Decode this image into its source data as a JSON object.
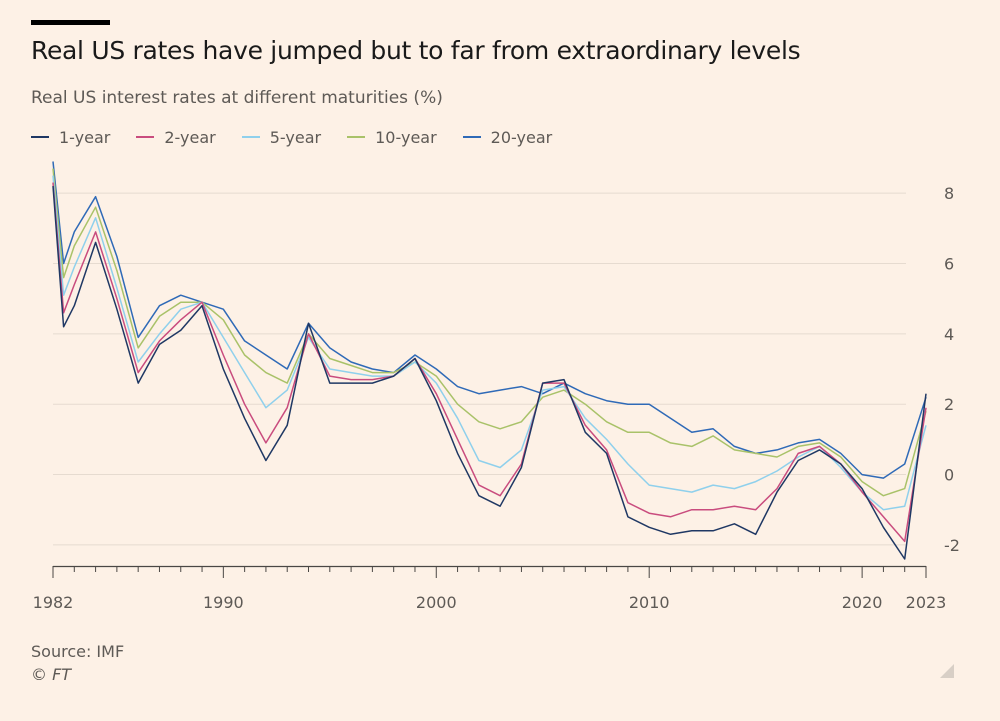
{
  "header": {
    "title": "Real US rates have jumped but to far from extraordinary levels",
    "subtitle": "Real US interest rates at different maturities (%)"
  },
  "footer": {
    "source": "Source: IMF",
    "credit": "© FT"
  },
  "chart_data": {
    "type": "line",
    "title": "Real US rates have jumped but to far from extraordinary levels",
    "ylabel": "Real US interest rates at different maturities (%)",
    "xlim": [
      1982,
      2023
    ],
    "ylim": [
      -2.6,
      9.0
    ],
    "xticks": [
      1982,
      1983,
      1984,
      1985,
      1986,
      1987,
      1988,
      1989,
      1990,
      1991,
      1992,
      1993,
      1994,
      1995,
      1996,
      1997,
      1998,
      1999,
      2000,
      2001,
      2002,
      2003,
      2004,
      2005,
      2006,
      2007,
      2008,
      2009,
      2010,
      2011,
      2012,
      2013,
      2014,
      2015,
      2016,
      2017,
      2018,
      2019,
      2020,
      2021,
      2022,
      2023
    ],
    "xtick_labels": [
      {
        "x": 1982,
        "label": "1982"
      },
      {
        "x": 1990,
        "label": "1990"
      },
      {
        "x": 2000,
        "label": "2000"
      },
      {
        "x": 2010,
        "label": "2010"
      },
      {
        "x": 2020,
        "label": "2020"
      },
      {
        "x": 2023,
        "label": "2023"
      }
    ],
    "yticks": [
      -2,
      0,
      2,
      4,
      6,
      8
    ],
    "ytick_labels": [
      "-2",
      "0",
      "2",
      "4",
      "6",
      "8"
    ],
    "grid": true,
    "legend_position": "top-left",
    "x": [
      1982.0,
      1982.5,
      1983.0,
      1984.0,
      1985.0,
      1986.0,
      1987.0,
      1988.0,
      1989.0,
      1990.0,
      1991.0,
      1992.0,
      1993.0,
      1994.0,
      1995.0,
      1996.0,
      1997.0,
      1998.0,
      1999.0,
      2000.0,
      2001.0,
      2002.0,
      2003.0,
      2004.0,
      2005.0,
      2006.0,
      2007.0,
      2008.0,
      2009.0,
      2010.0,
      2011.0,
      2012.0,
      2013.0,
      2014.0,
      2015.0,
      2016.0,
      2017.0,
      2018.0,
      2019.0,
      2020.0,
      2021.0,
      2022.0,
      2023.0
    ],
    "series": [
      {
        "name": "1-year",
        "color": "#1f3864",
        "values": [
          8.2,
          4.2,
          4.8,
          6.6,
          4.7,
          2.6,
          3.7,
          4.1,
          4.8,
          3.0,
          1.6,
          0.4,
          1.4,
          4.3,
          2.6,
          2.6,
          2.6,
          2.8,
          3.3,
          2.1,
          0.6,
          -0.6,
          -0.9,
          0.2,
          2.6,
          2.7,
          1.2,
          0.6,
          -1.2,
          -1.5,
          -1.7,
          -1.6,
          -1.6,
          -1.4,
          -1.7,
          -0.5,
          0.4,
          0.7,
          0.3,
          -0.4,
          -1.5,
          -2.4,
          2.3
        ]
      },
      {
        "name": "2-year",
        "color": "#c94c7e",
        "values": [
          8.3,
          4.6,
          5.4,
          6.9,
          5.0,
          2.9,
          3.8,
          4.4,
          4.9,
          3.4,
          2.0,
          0.9,
          1.9,
          4.0,
          2.8,
          2.7,
          2.7,
          2.8,
          3.3,
          2.3,
          1.0,
          -0.3,
          -0.6,
          0.3,
          2.6,
          2.6,
          1.4,
          0.7,
          -0.8,
          -1.1,
          -1.2,
          -1.0,
          -1.0,
          -0.9,
          -1.0,
          -0.4,
          0.6,
          0.8,
          0.3,
          -0.5,
          -1.2,
          -1.9,
          1.9
        ]
      },
      {
        "name": "5-year",
        "color": "#8fd0ec",
        "values": [
          8.5,
          5.1,
          5.9,
          7.3,
          5.3,
          3.2,
          4.0,
          4.7,
          4.9,
          3.9,
          2.9,
          1.9,
          2.4,
          3.9,
          3.0,
          2.9,
          2.8,
          2.8,
          3.2,
          2.6,
          1.6,
          0.4,
          0.2,
          0.7,
          2.4,
          2.5,
          1.6,
          1.0,
          0.3,
          -0.3,
          -0.4,
          -0.5,
          -0.3,
          -0.4,
          -0.2,
          0.1,
          0.5,
          0.8,
          0.2,
          -0.5,
          -1.0,
          -0.9,
          1.4
        ]
      },
      {
        "name": "10-year",
        "color": "#a9c269",
        "values": [
          8.7,
          5.6,
          6.5,
          7.6,
          5.8,
          3.6,
          4.5,
          4.9,
          4.9,
          4.4,
          3.4,
          2.9,
          2.6,
          4.0,
          3.3,
          3.1,
          2.9,
          2.9,
          3.2,
          2.8,
          2.0,
          1.5,
          1.3,
          1.5,
          2.2,
          2.4,
          2.0,
          1.5,
          1.2,
          1.2,
          0.9,
          0.8,
          1.1,
          0.7,
          0.6,
          0.5,
          0.8,
          0.9,
          0.5,
          -0.2,
          -0.6,
          -0.4,
          1.8
        ]
      },
      {
        "name": "20-year",
        "color": "#2f6ab7",
        "values": [
          8.9,
          6.0,
          6.9,
          7.9,
          6.2,
          3.9,
          4.8,
          5.1,
          4.9,
          4.7,
          3.8,
          3.4,
          3.0,
          4.3,
          3.6,
          3.2,
          3.0,
          2.9,
          3.4,
          3.0,
          2.5,
          2.3,
          2.4,
          2.5,
          2.3,
          2.6,
          2.3,
          2.1,
          2.0,
          2.0,
          1.6,
          1.2,
          1.3,
          0.8,
          0.6,
          0.7,
          0.9,
          1.0,
          0.6,
          0.0,
          -0.1,
          0.3,
          2.2
        ]
      }
    ]
  }
}
